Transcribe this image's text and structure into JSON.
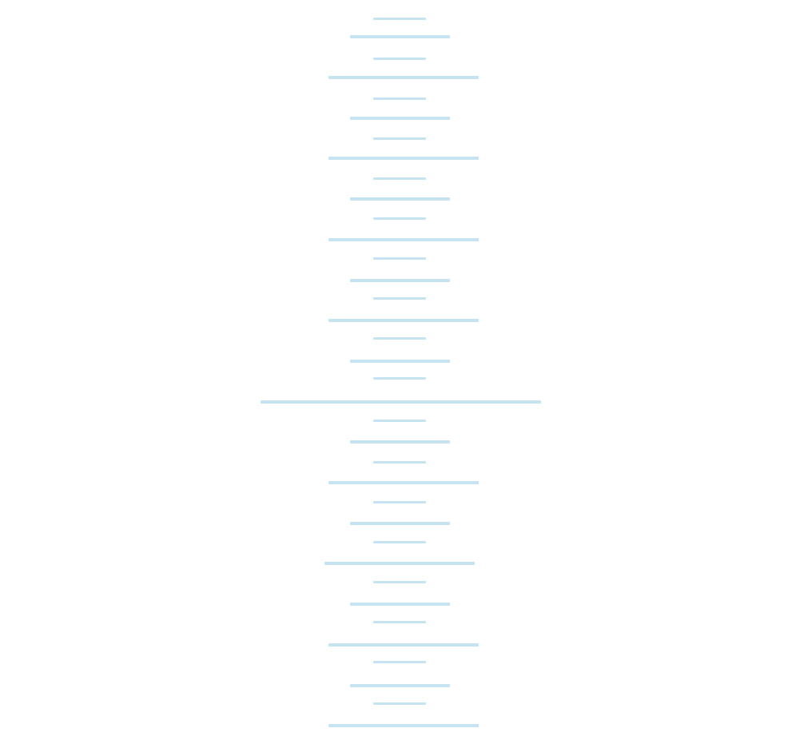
{
  "colors": {
    "background": "#ffffff",
    "tick": "#c5e3f1"
  },
  "marks": {
    "icon": "ruler-tick-lines",
    "count": 38
  }
}
